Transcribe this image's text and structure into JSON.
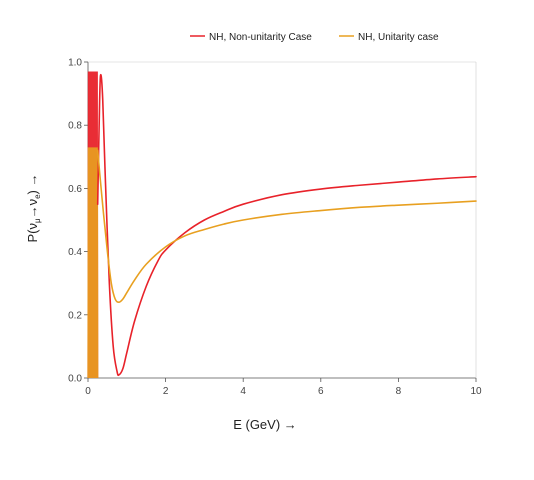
{
  "chart_data": {
    "type": "line",
    "title": "",
    "xlabel": "E (GeV) →",
    "ylabel": "P(νμ→νe) →",
    "ylabel_parts": {
      "prefix": "P(",
      "nu1": "ν",
      "sub1": "μ",
      "arrow": "→",
      "nu2": "ν",
      "sub2": "e",
      "suffix": ") →"
    },
    "xlim": [
      0,
      10
    ],
    "ylim": [
      0,
      1.0
    ],
    "xticks": [
      0,
      2,
      4,
      6,
      8,
      10
    ],
    "yticks": [
      0.0,
      0.2,
      0.4,
      0.6,
      0.8,
      1.0
    ],
    "ytick_labels": [
      "0.0",
      "0.2",
      "0.4",
      "0.6",
      "0.8",
      "1.0"
    ],
    "grid": false,
    "legend_position": "top-right",
    "series": [
      {
        "name": "NH, Non-unitarity Case",
        "color": "#e8222a",
        "x": [
          0.25,
          0.3,
          0.33,
          0.38,
          0.45,
          0.55,
          0.65,
          0.75,
          0.8,
          0.9,
          1.0,
          1.2,
          1.5,
          1.8,
          2.0,
          2.5,
          3.0,
          3.5,
          4.0,
          5.0,
          6.0,
          7.0,
          8.0,
          9.0,
          10.0
        ],
        "y": [
          0.55,
          0.88,
          0.96,
          0.88,
          0.62,
          0.3,
          0.1,
          0.02,
          0.01,
          0.03,
          0.08,
          0.18,
          0.29,
          0.37,
          0.405,
          0.46,
          0.5,
          0.527,
          0.55,
          0.58,
          0.598,
          0.61,
          0.62,
          0.63,
          0.637
        ],
        "oscillation_band": {
          "x_range": [
            0.0,
            0.25
          ],
          "y_range": [
            0.0,
            0.97
          ]
        }
      },
      {
        "name": "NH, Unitarity case",
        "color": "#e8a020",
        "x": [
          0.25,
          0.3,
          0.4,
          0.5,
          0.6,
          0.7,
          0.8,
          0.9,
          1.0,
          1.2,
          1.5,
          2.0,
          2.5,
          3.0,
          3.5,
          4.0,
          5.0,
          6.0,
          7.0,
          8.0,
          9.0,
          10.0
        ],
        "y": [
          0.72,
          0.65,
          0.52,
          0.4,
          0.3,
          0.25,
          0.24,
          0.25,
          0.27,
          0.31,
          0.36,
          0.415,
          0.45,
          0.47,
          0.487,
          0.5,
          0.518,
          0.53,
          0.54,
          0.547,
          0.553,
          0.56
        ],
        "oscillation_band": {
          "x_range": [
            0.0,
            0.25
          ],
          "y_range": [
            0.0,
            0.73
          ]
        }
      }
    ]
  }
}
